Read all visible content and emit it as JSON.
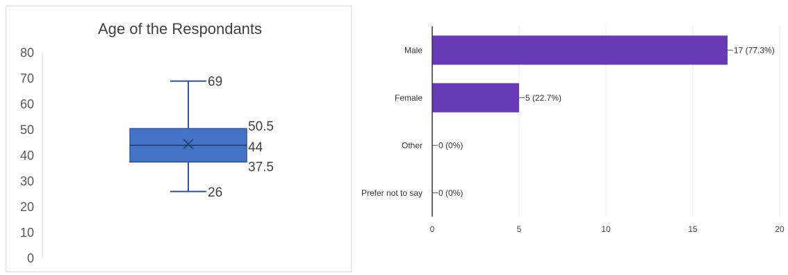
{
  "chart_data": [
    {
      "type": "box",
      "title": "Age of the Respondants",
      "ylim": [
        0,
        80
      ],
      "y_ticks": [
        0,
        10,
        20,
        30,
        40,
        50,
        60,
        70,
        80
      ],
      "stats": {
        "min": 26,
        "q1": 37.5,
        "median": 44,
        "mean": 44.5,
        "q3": 50.5,
        "max": 69
      },
      "value_labels": [
        "69",
        "50.5",
        "44",
        "37.5",
        "26"
      ],
      "colors": {
        "box": "#4472c4",
        "box_edge": "#2f5597"
      }
    },
    {
      "type": "bar",
      "orientation": "horizontal",
      "categories": [
        "Male",
        "Female",
        "Other",
        "Prefer not to say"
      ],
      "values": [
        17,
        5,
        0,
        0
      ],
      "data_labels": [
        "17 (77.3%)",
        "5 (22.7%)",
        "0 (0%)",
        "0 (0%)"
      ],
      "xlim": [
        0,
        20
      ],
      "x_ticks": [
        0,
        5,
        10,
        15,
        20
      ],
      "colors": {
        "bar": "#673ab7"
      }
    }
  ]
}
